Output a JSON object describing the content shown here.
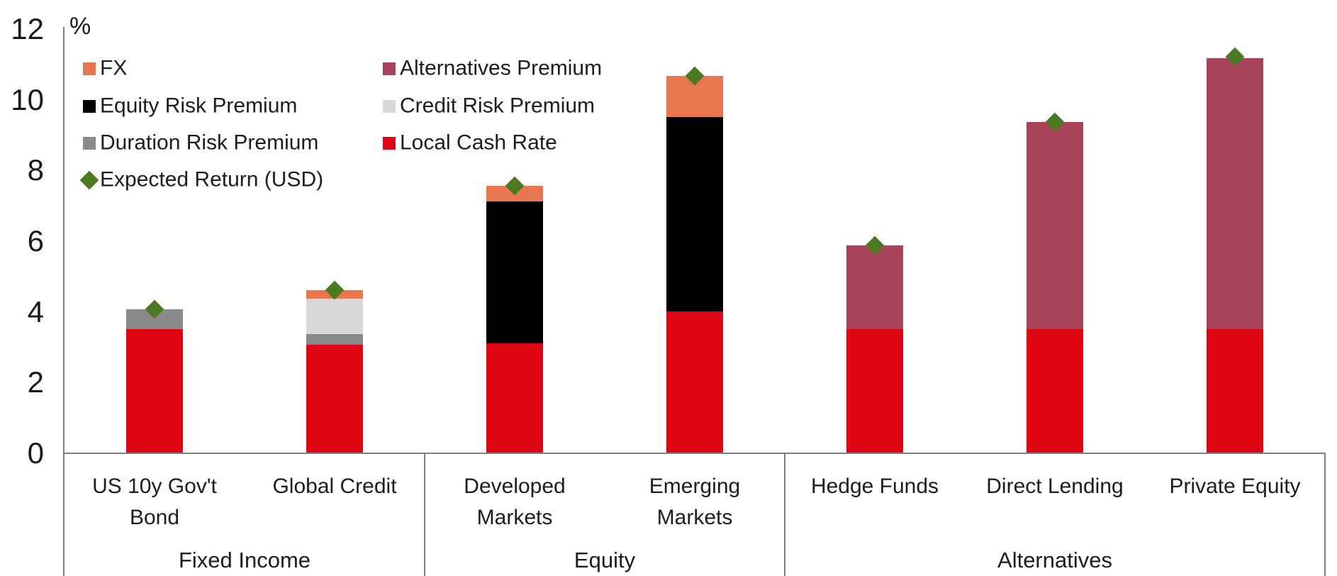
{
  "chart_data": {
    "type": "bar",
    "stacked": true,
    "title": "",
    "unit_label": "%",
    "xlabel": "",
    "ylabel": "%",
    "ylim": [
      0,
      12
    ],
    "yticks": [
      0,
      2,
      4,
      6,
      8,
      10,
      12
    ],
    "grid": false,
    "legend_position": "top-left-inside-plot",
    "series_colors": {
      "FX": "#E8764E",
      "Equity Risk Premium": "#000000",
      "Duration Risk Premium": "#8A8A8A",
      "Credit Risk Premium": "#D8D8D8",
      "Alternatives Premium": "#A74459",
      "Local Cash Rate": "#DF0613",
      "Expected Return (USD)": "#4C7A23"
    },
    "legend": {
      "columns": [
        [
          {
            "label": "FX",
            "series": "FX",
            "swatch": "square"
          },
          {
            "label": "Equity Risk Premium",
            "series": "Equity Risk Premium",
            "swatch": "square"
          },
          {
            "label": "Duration Risk Premium",
            "series": "Duration Risk Premium",
            "swatch": "square"
          },
          {
            "label": "Expected Return (USD)",
            "series": "Expected Return (USD)",
            "swatch": "diamond"
          }
        ],
        [
          {
            "label": "Alternatives Premium",
            "series": "Alternatives Premium",
            "swatch": "square"
          },
          {
            "label": "Credit Risk Premium",
            "series": "Credit Risk Premium",
            "swatch": "square"
          },
          {
            "label": "Local Cash Rate",
            "series": "Local Cash Rate",
            "swatch": "square"
          }
        ]
      ]
    },
    "groups": [
      {
        "label": "Fixed Income",
        "span": 2
      },
      {
        "label": "Equity",
        "span": 2
      },
      {
        "label": "Alternatives",
        "span": 3
      }
    ],
    "categories": [
      {
        "label": "US 10y Gov't Bond",
        "label_lines": [
          "US 10y Gov't",
          "Bond"
        ],
        "group": "Fixed Income",
        "segments": [
          {
            "series": "Local Cash Rate",
            "value": 3.5
          },
          {
            "series": "Duration Risk Premium",
            "value": 0.55
          }
        ],
        "total": 4.05,
        "expected_return": 4.05
      },
      {
        "label": "Global Credit",
        "label_lines": [
          "Global Credit"
        ],
        "group": "Fixed Income",
        "segments": [
          {
            "series": "Local Cash Rate",
            "value": 3.05
          },
          {
            "series": "Duration Risk Premium",
            "value": 0.3
          },
          {
            "series": "Credit Risk Premium",
            "value": 1.0
          },
          {
            "series": "FX",
            "value": 0.25
          }
        ],
        "total": 4.6,
        "expected_return": 4.6
      },
      {
        "label": "Developed Markets",
        "label_lines": [
          "Developed",
          "Markets"
        ],
        "group": "Equity",
        "segments": [
          {
            "series": "Local Cash Rate",
            "value": 3.1
          },
          {
            "series": "Equity Risk Premium",
            "value": 4.0
          },
          {
            "series": "FX",
            "value": 0.45
          }
        ],
        "total": 7.55,
        "expected_return": 7.55
      },
      {
        "label": "Emerging Markets",
        "label_lines": [
          "Emerging",
          "Markets"
        ],
        "group": "Equity",
        "segments": [
          {
            "series": "Local Cash Rate",
            "value": 4.0
          },
          {
            "series": "Equity Risk Premium",
            "value": 5.5
          },
          {
            "series": "FX",
            "value": 1.15
          }
        ],
        "total": 10.65,
        "expected_return": 10.65
      },
      {
        "label": "Hedge Funds",
        "label_lines": [
          "Hedge Funds"
        ],
        "group": "Alternatives",
        "segments": [
          {
            "series": "Local Cash Rate",
            "value": 3.5
          },
          {
            "series": "Alternatives Premium",
            "value": 2.35
          }
        ],
        "total": 5.85,
        "expected_return": 5.85
      },
      {
        "label": "Direct Lending",
        "label_lines": [
          "Direct Lending"
        ],
        "group": "Alternatives",
        "segments": [
          {
            "series": "Local Cash Rate",
            "value": 3.5
          },
          {
            "series": "Alternatives Premium",
            "value": 5.85
          }
        ],
        "total": 9.35,
        "expected_return": 9.35
      },
      {
        "label": "Private Equity",
        "label_lines": [
          "Private Equity"
        ],
        "group": "Alternatives",
        "segments": [
          {
            "series": "Local Cash Rate",
            "value": 3.5
          },
          {
            "series": "Alternatives Premium",
            "value": 7.65
          }
        ],
        "total": 11.15,
        "expected_return": 11.2
      }
    ],
    "axis_color": "#7F7F7F",
    "text_color": "#1D1D1D"
  }
}
